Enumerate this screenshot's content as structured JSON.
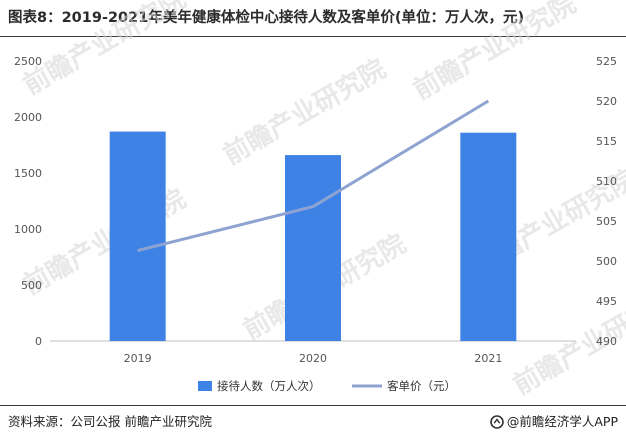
{
  "title": "图表8：2019-2021年美年健康体检中心接待人数及客单价(单位：万人次，元)",
  "footer": {
    "source": "资料来源：公司公报 前瞻产业研究院",
    "brand": "@前瞻经济学人APP"
  },
  "watermark": "前瞻产业研究院",
  "colors": {
    "bar": "#3e82e5",
    "line": "#8fa3d3"
  },
  "chart_data": {
    "type": "bar+line",
    "categories": [
      "2019",
      "2020",
      "2021"
    ],
    "series": [
      {
        "name": "接待人数（万人次）",
        "type": "bar",
        "axis": "left",
        "values": [
          1870,
          1660,
          1860
        ]
      },
      {
        "name": "客单价（元）",
        "type": "line",
        "axis": "right",
        "values": [
          501.3,
          506.8,
          520.0
        ]
      }
    ],
    "y_left": {
      "min": 0,
      "max": 2500,
      "ticks": [
        0,
        500,
        1000,
        1500,
        2000,
        2500
      ]
    },
    "y_right": {
      "min": 490,
      "max": 525,
      "ticks": [
        490,
        495,
        500,
        505,
        510,
        515,
        520,
        525
      ]
    },
    "legend": "bottom",
    "grid": false
  }
}
